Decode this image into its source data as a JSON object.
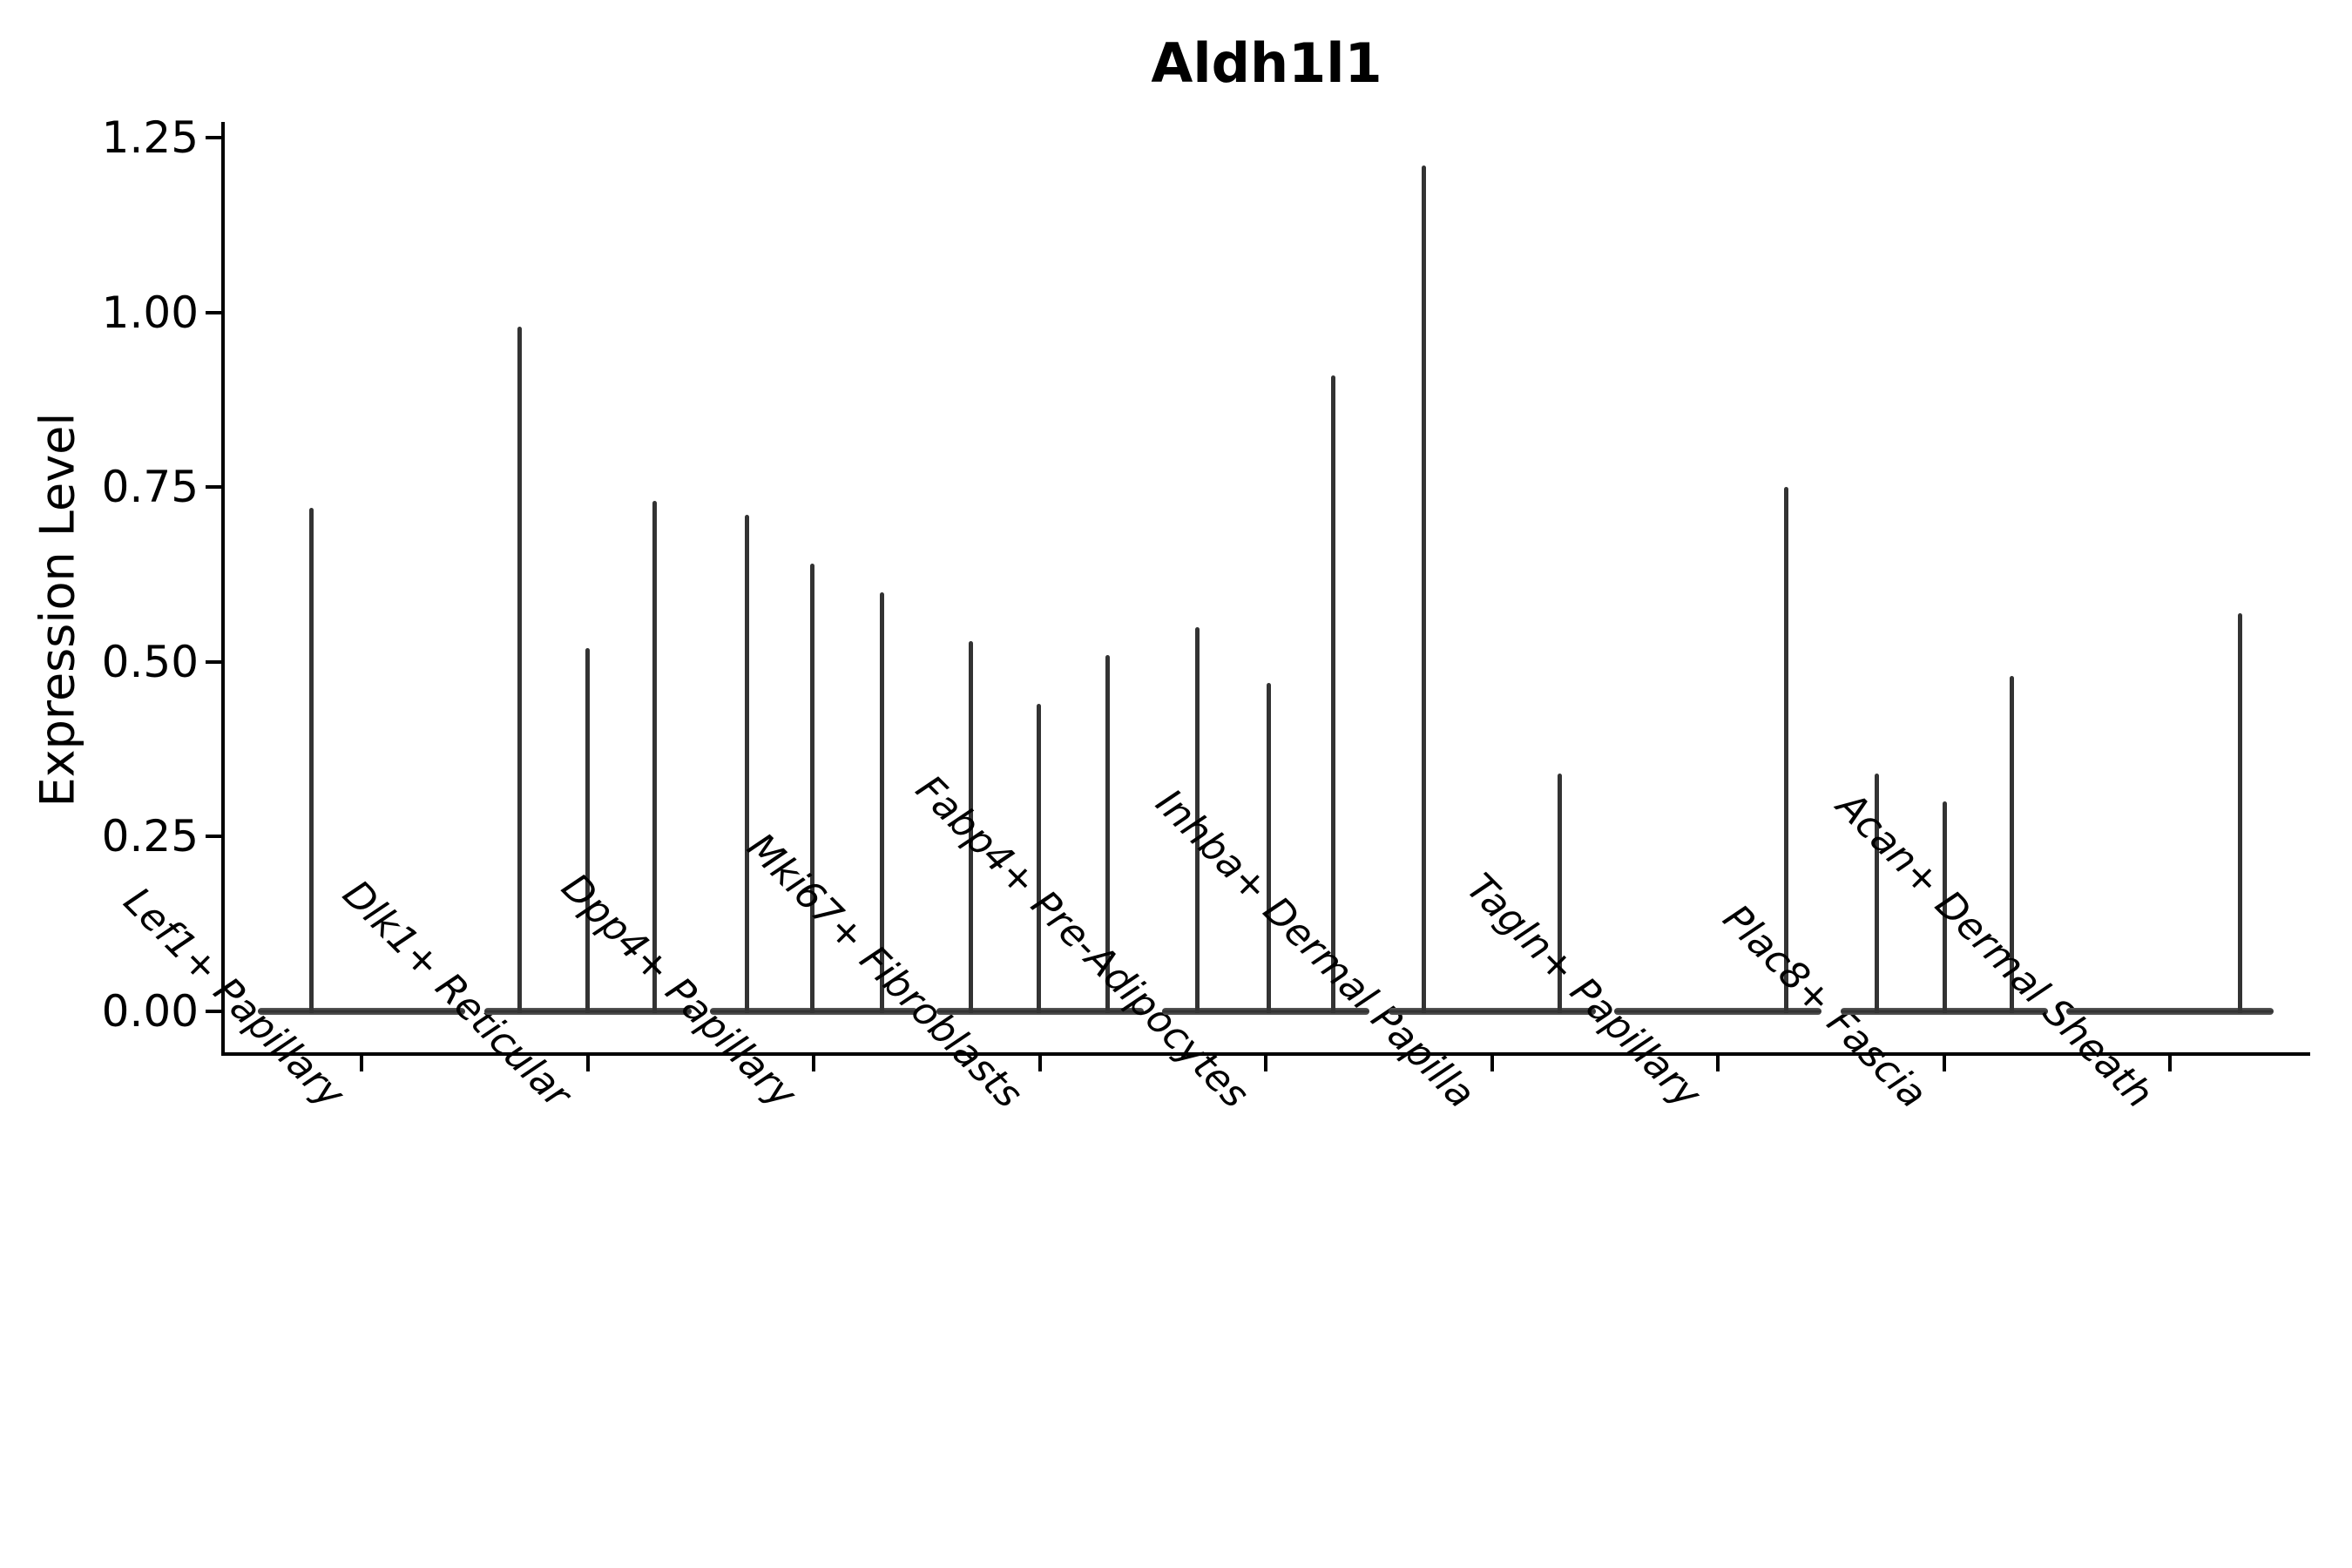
{
  "chart_data": {
    "type": "violin",
    "title": "Aldh1l1",
    "ylabel": "Expression Level",
    "xlabel": "",
    "grid": false,
    "legend": null,
    "ylim": [
      -0.06,
      1.27
    ],
    "yticks": [
      {
        "label": "0.00",
        "value": 0.0
      },
      {
        "label": "0.25",
        "value": 0.25
      },
      {
        "label": "0.50",
        "value": 0.5
      },
      {
        "label": "0.75",
        "value": 0.75
      },
      {
        "label": "1.00",
        "value": 1.0
      },
      {
        "label": "1.25",
        "value": 1.25
      }
    ],
    "categories": [
      "Lef1+ Papillary",
      "Dlk1+ Reticular",
      "Dpp4+ Papillary",
      "Mki67+ Fibroblasts",
      "Fabp4+ Pre-Adipocytes",
      "Inhba+ Dermal Papilla",
      "Tagln+ Papillary",
      "Plac8+ Fascia",
      "Acan+ Dermal Sheath"
    ],
    "violins": [
      {
        "category": "Lef1+ Papillary",
        "spikes": [
          {
            "offset": -58,
            "max": 0.72
          }
        ]
      },
      {
        "category": "Dlk1+ Reticular",
        "spikes": [
          {
            "offset": -78,
            "max": 0.98
          },
          {
            "offset": 0,
            "max": 0.52
          },
          {
            "offset": 77,
            "max": 0.73
          }
        ]
      },
      {
        "category": "Dpp4+ Papillary",
        "spikes": [
          {
            "offset": -77,
            "max": 0.71
          },
          {
            "offset": -2,
            "max": 0.64
          },
          {
            "offset": 78,
            "max": 0.6
          }
        ]
      },
      {
        "category": "Mki67+ Fibroblasts",
        "spikes": [
          {
            "offset": -79,
            "max": 0.53
          },
          {
            "offset": -1,
            "max": 0.44
          },
          {
            "offset": 78,
            "max": 0.51
          }
        ]
      },
      {
        "category": "Fabp4+ Pre-Adipocytes",
        "spikes": [
          {
            "offset": -79,
            "max": 0.55
          },
          {
            "offset": 3,
            "max": 0.47
          },
          {
            "offset": 77,
            "max": 0.91
          }
        ]
      },
      {
        "category": "Inhba+ Dermal Papilla",
        "spikes": [
          {
            "offset": -78,
            "max": 1.21
          },
          {
            "offset": 78,
            "max": 0.34
          }
        ]
      },
      {
        "category": "Tagln+ Papillary",
        "spikes": [
          {
            "offset": 78,
            "max": 0.75
          }
        ]
      },
      {
        "category": "Plac8+ Fascia",
        "spikes": [
          {
            "offset": -77,
            "max": 0.34
          },
          {
            "offset": 1,
            "max": 0.3
          },
          {
            "offset": 78,
            "max": 0.48
          }
        ]
      },
      {
        "category": "Acan+ Dermal Sheath",
        "spikes": [
          {
            "offset": 80,
            "max": 0.57
          }
        ]
      }
    ],
    "colors": {
      "violin": "#333333",
      "axis": "#000000",
      "background": "#ffffff"
    }
  }
}
